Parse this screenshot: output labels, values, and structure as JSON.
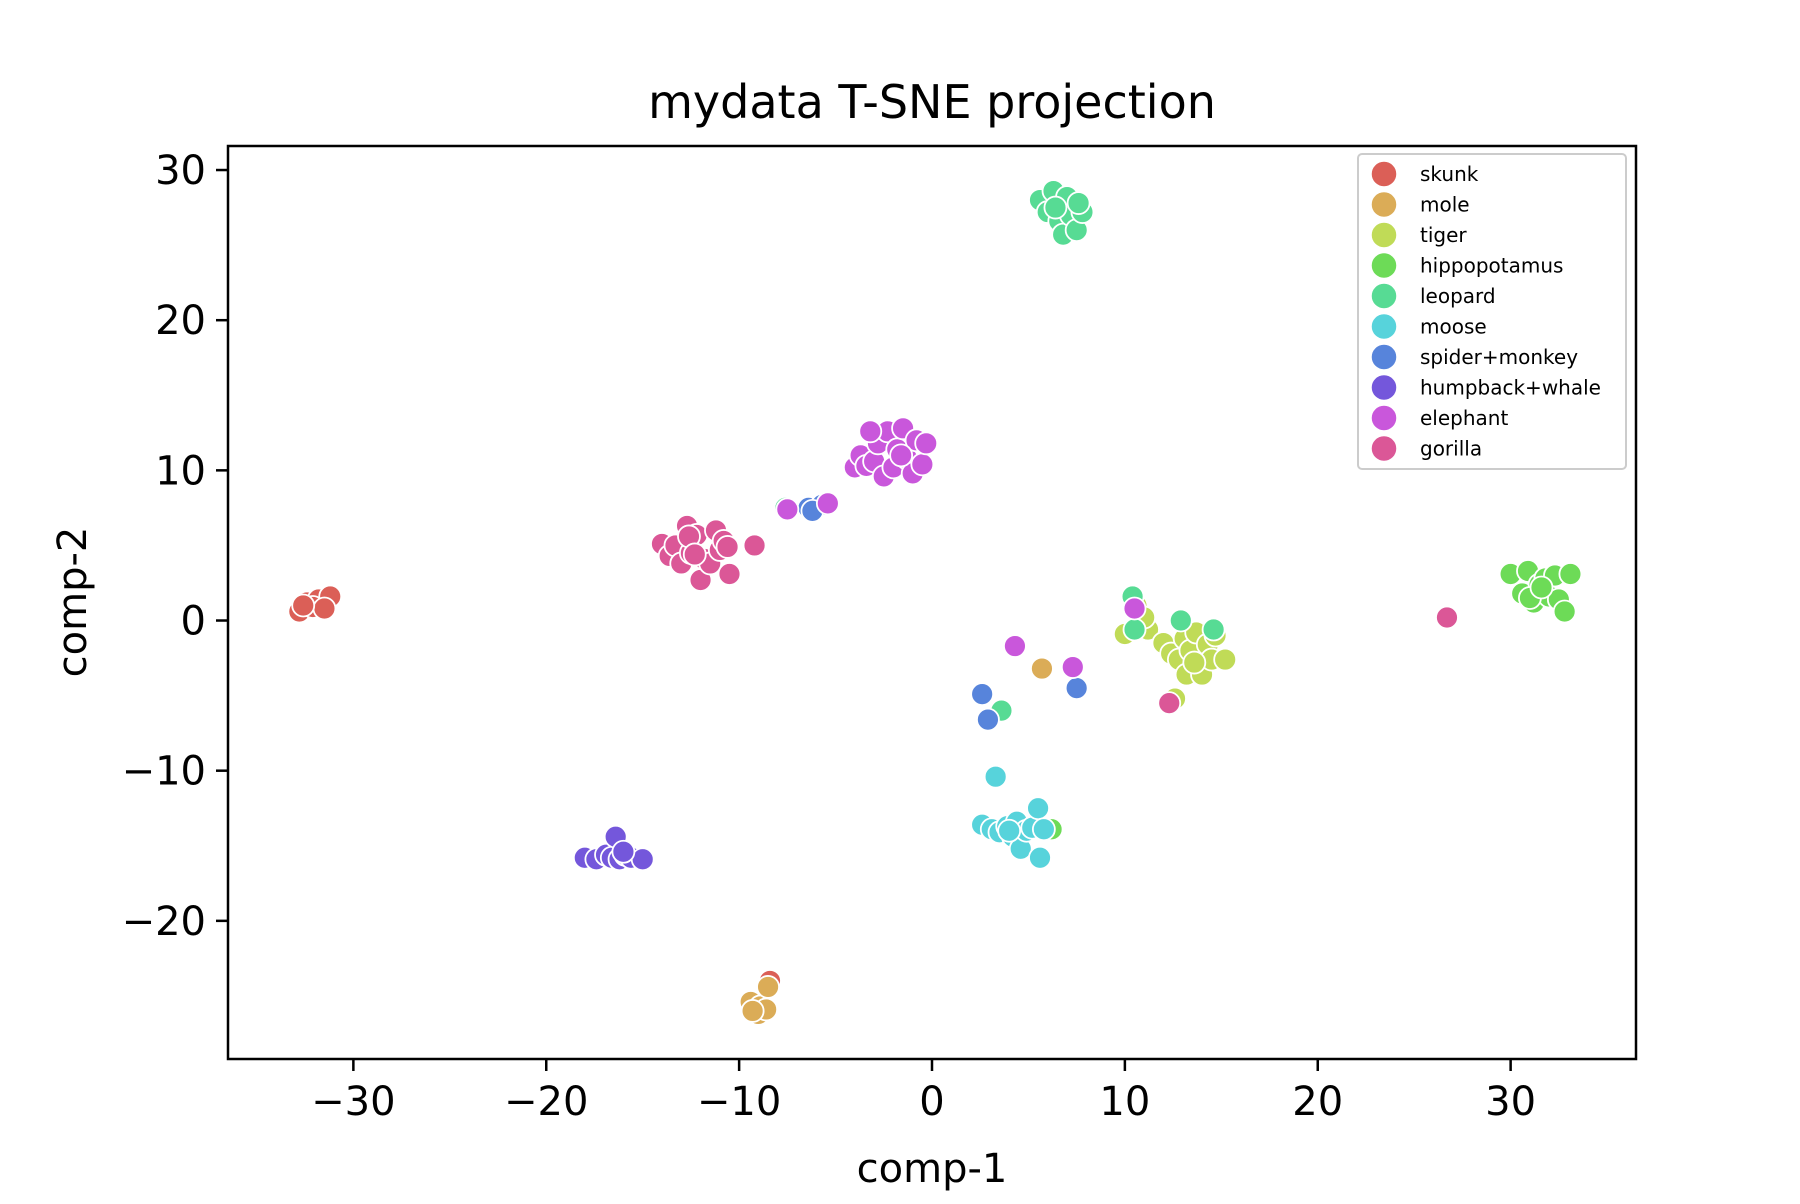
{
  "chart_data": {
    "type": "scatter",
    "title": "mydata T-SNE projection",
    "xlabel": "comp-1",
    "ylabel": "comp-2",
    "xlim": [
      -36.5,
      36.5
    ],
    "ylim": [
      -29.2,
      31.6
    ],
    "xticks": [
      -30,
      -20,
      -10,
      0,
      10,
      20,
      30
    ],
    "yticks": [
      -20,
      -10,
      0,
      10,
      20,
      30
    ],
    "xtick_labels": [
      "−30",
      "−20",
      "−10",
      "0",
      "10",
      "20",
      "30"
    ],
    "ytick_labels": [
      "−20",
      "−10",
      "0",
      "10",
      "20",
      "30"
    ],
    "grid": false,
    "legend_position": "top-right",
    "series": [
      {
        "name": "skunk",
        "color": "#db5f57",
        "points": [
          [
            -32.8,
            0.6
          ],
          [
            -32.4,
            1.2
          ],
          [
            -31.8,
            1.4
          ],
          [
            -31.2,
            1.6
          ],
          [
            -32.1,
            0.9
          ],
          [
            -31.5,
            0.8
          ],
          [
            -32.6,
            1.0
          ],
          [
            -8.4,
            -24.0
          ]
        ]
      },
      {
        "name": "mole",
        "color": "#dbac57",
        "points": [
          [
            -9.4,
            -25.4
          ],
          [
            -8.9,
            -25.7
          ],
          [
            -8.5,
            -24.4
          ],
          [
            -9.0,
            -26.2
          ],
          [
            -8.6,
            -25.9
          ],
          [
            -9.3,
            -26.0
          ],
          [
            5.7,
            -3.2
          ]
        ]
      },
      {
        "name": "tiger",
        "color": "#c0db57",
        "points": [
          [
            10.0,
            -0.9
          ],
          [
            10.6,
            1.0
          ],
          [
            11.2,
            -0.6
          ],
          [
            11.0,
            0.2
          ],
          [
            12.0,
            -1.5
          ],
          [
            12.4,
            -2.2
          ],
          [
            12.8,
            -2.6
          ],
          [
            13.1,
            -1.2
          ],
          [
            13.4,
            -2.0
          ],
          [
            13.7,
            -0.8
          ],
          [
            13.2,
            -3.6
          ],
          [
            14.0,
            -3.6
          ],
          [
            14.3,
            -1.6
          ],
          [
            14.5,
            -2.6
          ],
          [
            14.7,
            -1.0
          ],
          [
            15.2,
            -2.6
          ],
          [
            12.6,
            -5.2
          ],
          [
            13.6,
            -2.8
          ]
        ]
      },
      {
        "name": "hippopotamus",
        "color": "#6ddb57",
        "points": [
          [
            30.0,
            3.1
          ],
          [
            30.6,
            1.8
          ],
          [
            30.9,
            3.3
          ],
          [
            31.2,
            1.2
          ],
          [
            31.5,
            2.4
          ],
          [
            31.8,
            2.8
          ],
          [
            32.0,
            1.6
          ],
          [
            32.3,
            3.0
          ],
          [
            32.5,
            1.4
          ],
          [
            32.8,
            0.6
          ],
          [
            33.1,
            3.1
          ],
          [
            31.0,
            1.5
          ],
          [
            31.6,
            2.2
          ],
          [
            6.2,
            -13.9
          ]
        ]
      },
      {
        "name": "leopard",
        "color": "#57db94",
        "points": [
          [
            5.6,
            28.0
          ],
          [
            6.0,
            27.2
          ],
          [
            6.3,
            28.6
          ],
          [
            6.6,
            26.6
          ],
          [
            6.8,
            25.7
          ],
          [
            7.0,
            28.2
          ],
          [
            7.2,
            27.0
          ],
          [
            7.5,
            26.0
          ],
          [
            7.8,
            27.2
          ],
          [
            7.6,
            27.8
          ],
          [
            6.4,
            27.5
          ],
          [
            -7.6,
            7.5
          ],
          [
            3.6,
            -6.0
          ],
          [
            10.4,
            1.6
          ],
          [
            10.5,
            -0.6
          ],
          [
            12.9,
            0.0
          ],
          [
            14.6,
            -0.6
          ]
        ]
      },
      {
        "name": "moose",
        "color": "#57d3db",
        "points": [
          [
            2.6,
            -13.6
          ],
          [
            3.1,
            -13.9
          ],
          [
            3.5,
            -14.1
          ],
          [
            3.9,
            -13.7
          ],
          [
            4.2,
            -14.4
          ],
          [
            4.4,
            -13.4
          ],
          [
            4.6,
            -15.2
          ],
          [
            4.9,
            -14.0
          ],
          [
            5.2,
            -13.8
          ],
          [
            5.5,
            -12.5
          ],
          [
            5.6,
            -15.8
          ],
          [
            5.8,
            -13.9
          ],
          [
            3.3,
            -10.4
          ],
          [
            4.0,
            -14.0
          ]
        ]
      },
      {
        "name": "spider+monkey",
        "color": "#5784db",
        "points": [
          [
            -6.4,
            7.5
          ],
          [
            -5.7,
            7.7
          ],
          [
            -6.2,
            7.3
          ],
          [
            2.6,
            -4.9
          ],
          [
            2.9,
            -6.6
          ],
          [
            7.5,
            -4.5
          ]
        ]
      },
      {
        "name": "humpback+whale",
        "color": "#7457db",
        "points": [
          [
            -18.0,
            -15.8
          ],
          [
            -17.4,
            -15.9
          ],
          [
            -16.9,
            -15.6
          ],
          [
            -16.6,
            -15.8
          ],
          [
            -16.2,
            -15.9
          ],
          [
            -15.9,
            -15.6
          ],
          [
            -15.6,
            -15.8
          ],
          [
            -15.0,
            -15.9
          ],
          [
            -16.4,
            -14.4
          ],
          [
            -16.0,
            -15.4
          ]
        ]
      },
      {
        "name": "elephant",
        "color": "#c957db",
        "points": [
          [
            -4.0,
            10.2
          ],
          [
            -3.7,
            11.0
          ],
          [
            -3.4,
            10.3
          ],
          [
            -3.0,
            10.6
          ],
          [
            -2.8,
            11.8
          ],
          [
            -2.5,
            9.6
          ],
          [
            -2.3,
            12.6
          ],
          [
            -2.0,
            10.2
          ],
          [
            -1.8,
            11.4
          ],
          [
            -1.5,
            12.8
          ],
          [
            -1.3,
            10.8
          ],
          [
            -1.0,
            9.8
          ],
          [
            -0.8,
            12.0
          ],
          [
            -0.5,
            10.4
          ],
          [
            -0.3,
            11.8
          ],
          [
            -3.2,
            12.6
          ],
          [
            -1.6,
            11.0
          ],
          [
            -7.5,
            7.4
          ],
          [
            -5.4,
            7.8
          ],
          [
            4.3,
            -1.7
          ],
          [
            7.3,
            -3.1
          ],
          [
            10.5,
            0.8
          ]
        ]
      },
      {
        "name": "gorilla",
        "color": "#db5797",
        "points": [
          [
            -14.0,
            5.1
          ],
          [
            -13.6,
            4.3
          ],
          [
            -13.3,
            5.0
          ],
          [
            -13.0,
            3.8
          ],
          [
            -12.7,
            6.3
          ],
          [
            -12.5,
            4.5
          ],
          [
            -12.2,
            5.7
          ],
          [
            -12.0,
            2.7
          ],
          [
            -11.8,
            4.1
          ],
          [
            -11.5,
            3.8
          ],
          [
            -11.2,
            6.0
          ],
          [
            -11.0,
            4.7
          ],
          [
            -10.8,
            5.3
          ],
          [
            -10.6,
            4.9
          ],
          [
            -10.5,
            3.1
          ],
          [
            -12.6,
            5.6
          ],
          [
            -12.3,
            4.4
          ],
          [
            -9.2,
            5.0
          ],
          [
            12.3,
            -5.5
          ],
          [
            26.7,
            0.2
          ]
        ]
      }
    ]
  }
}
